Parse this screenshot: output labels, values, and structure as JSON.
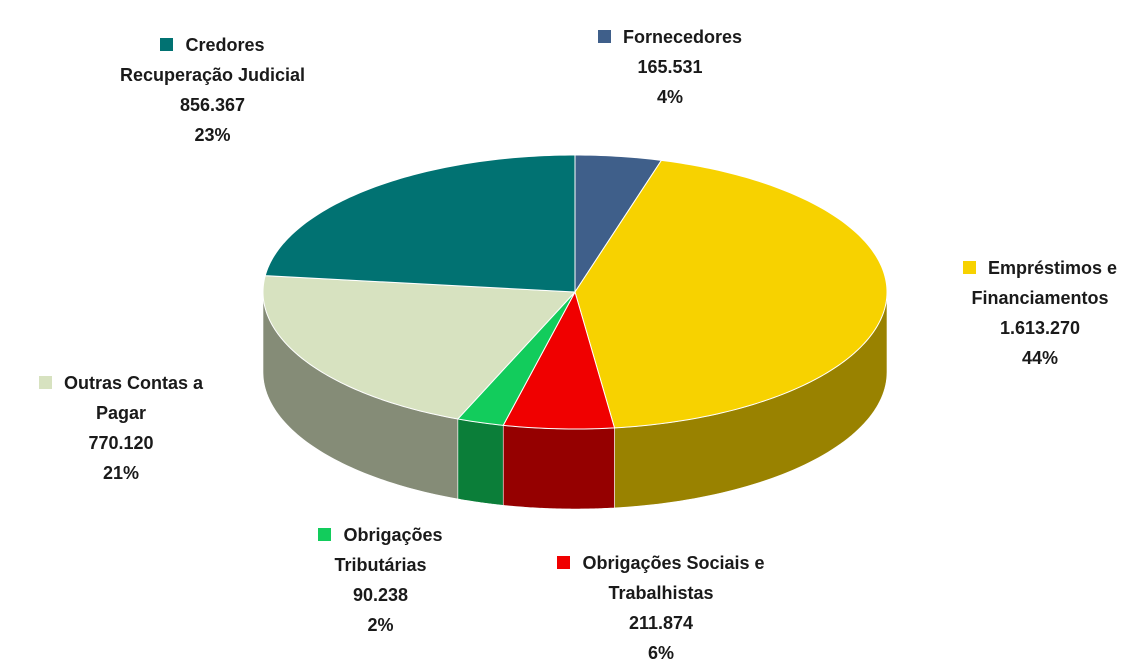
{
  "chart_data": {
    "type": "pie3d",
    "categories": [
      "Fornecedores",
      "Empréstimos e Financiamentos",
      "Obrigações Sociais e Trabalhistas",
      "Obrigações Tributárias",
      "Outras Contas a Pagar",
      "Credores Recuperação Judicial"
    ],
    "values": [
      165531,
      1613270,
      211874,
      90238,
      770120,
      856367
    ],
    "value_labels": [
      "165.531",
      "1.613.270",
      "211.874",
      "90.238",
      "770.120",
      "856.367"
    ],
    "percent_labels": [
      "4%",
      "44%",
      "6%",
      "2%",
      "21%",
      "23%"
    ],
    "colors": [
      "#3f5f8a",
      "#f7d200",
      "#f00000",
      "#12cc5c",
      "#d7e2c0",
      "#017272"
    ]
  }
}
